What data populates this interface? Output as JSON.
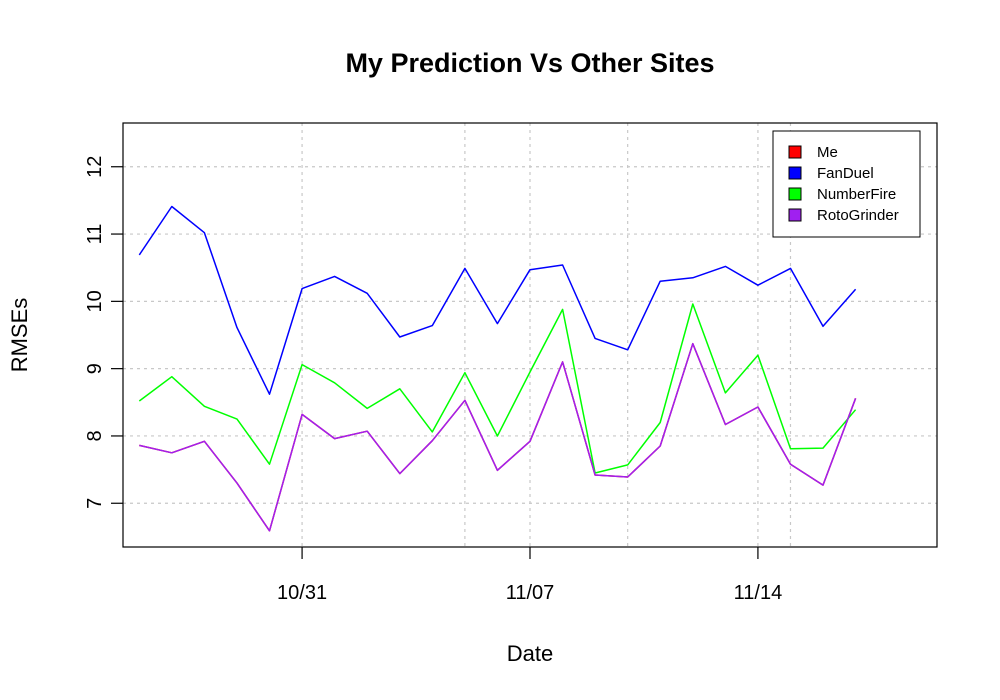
{
  "chart_data": {
    "type": "line",
    "title": "My Prediction Vs Other Sites",
    "xlabel": "Date",
    "ylabel": "RMSEs",
    "x": [
      "2025-10-26",
      "2025-10-27",
      "2025-10-28",
      "2025-10-29",
      "2025-10-30",
      "2025-10-31",
      "2025-11-01",
      "2025-11-02",
      "2025-11-03",
      "2025-11-04",
      "2025-11-05",
      "2025-11-06",
      "2025-11-07",
      "2025-11-08",
      "2025-11-09",
      "2025-11-10",
      "2025-11-11",
      "2025-11-12",
      "2025-11-13",
      "2025-11-14",
      "2025-11-15",
      "2025-11-16",
      "2025-11-17",
      "2025-11-18"
    ],
    "xlim": [
      "2025-10-25T12:00",
      "2025-11-19T12:00"
    ],
    "x_tick_dates": [
      "2025-10-31",
      "2025-11-07",
      "2025-11-14"
    ],
    "x_tick_labels": [
      "10/31",
      "11/07",
      "11/14"
    ],
    "x_grid_dates": [
      "2025-10-31",
      "2025-11-05",
      "2025-11-07",
      "2025-11-10",
      "2025-11-14",
      "2025-11-15"
    ],
    "ylim": [
      6.35,
      12.65
    ],
    "y_ticks": [
      7,
      8,
      9,
      10,
      11,
      12
    ],
    "grid": true,
    "legend_position": "top-right",
    "series": [
      {
        "name": "Me",
        "color": "#ff0000",
        "values": [
          7.86,
          7.75,
          7.92,
          7.3,
          6.59,
          8.32,
          7.96,
          8.07,
          7.44,
          7.93,
          8.53,
          7.49,
          7.92,
          9.1,
          7.42,
          7.39,
          7.85,
          9.37,
          8.17,
          8.43,
          7.58,
          7.27,
          8.56,
          null
        ]
      },
      {
        "name": "FanDuel",
        "color": "#0000ff",
        "values": [
          10.69,
          11.41,
          11.02,
          9.61,
          8.62,
          10.19,
          10.37,
          10.12,
          9.47,
          9.64,
          10.49,
          9.67,
          10.47,
          10.54,
          9.45,
          9.28,
          10.3,
          10.35,
          10.52,
          10.24,
          10.49,
          9.63,
          10.18,
          null
        ]
      },
      {
        "name": "NumberFire",
        "color": "#00ff00",
        "values": [
          8.52,
          8.88,
          8.44,
          8.25,
          7.58,
          9.06,
          8.79,
          8.41,
          8.7,
          8.06,
          8.94,
          8.0,
          8.95,
          9.88,
          7.45,
          7.57,
          8.2,
          9.96,
          8.64,
          9.2,
          7.81,
          7.82,
          8.39,
          null
        ]
      },
      {
        "name": "RotoGrinder",
        "color": "#a020f0",
        "values": [
          7.86,
          7.75,
          7.92,
          7.3,
          6.59,
          8.32,
          7.96,
          8.07,
          7.44,
          7.93,
          8.53,
          7.49,
          7.92,
          9.1,
          7.42,
          7.39,
          7.85,
          9.37,
          8.17,
          8.43,
          7.58,
          7.27,
          8.56,
          null
        ]
      }
    ]
  }
}
